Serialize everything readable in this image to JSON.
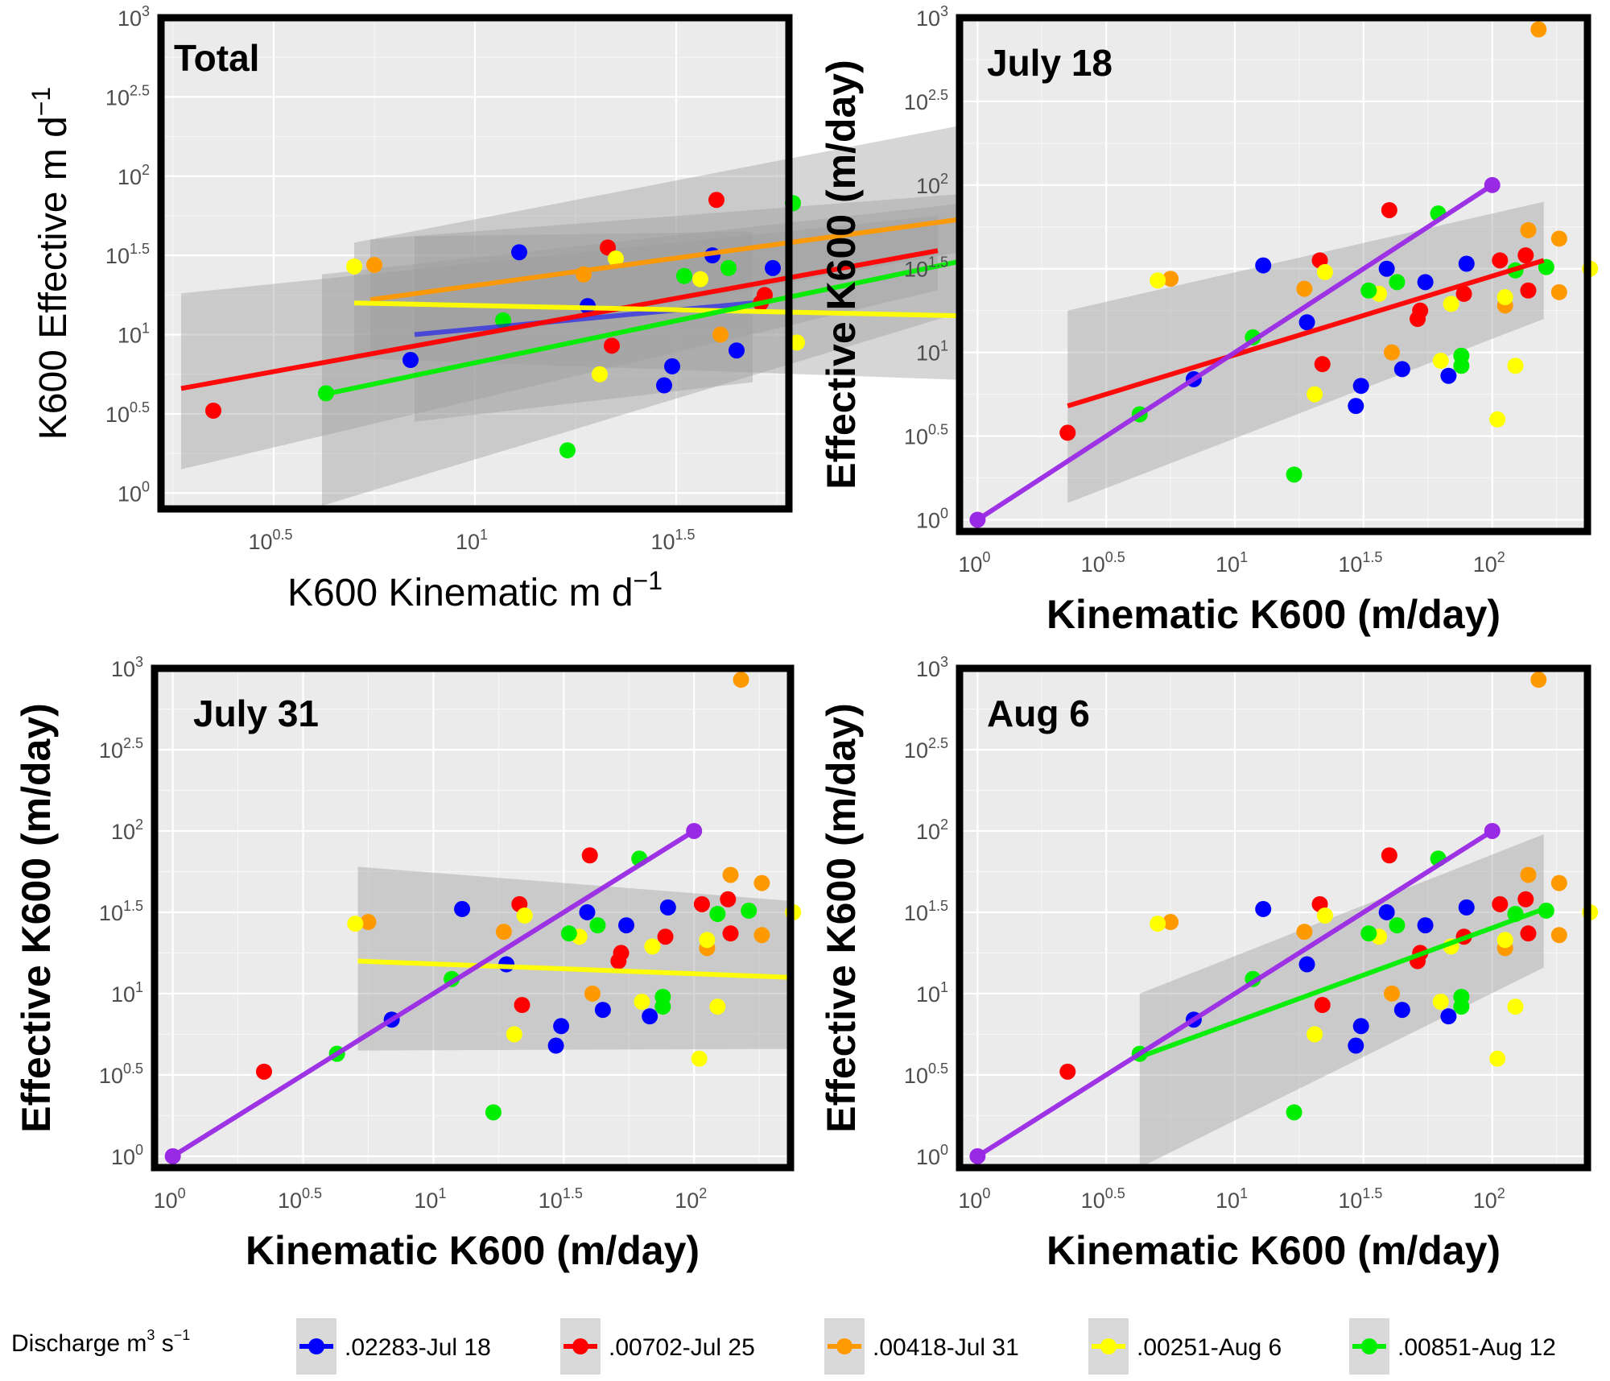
{
  "legend": {
    "title": "Discharge m",
    "title_sup_1": "3",
    "title_mid": " s",
    "title_sup_2": "−1",
    "items": [
      {
        "label": ".02283-Jul 18",
        "color": "#0000ff"
      },
      {
        "label": ".00702-Jul 25",
        "color": "#ff0000"
      },
      {
        "label": ".00418-Jul 31",
        "color": "#ff9900"
      },
      {
        "label": ".00251-Aug 6",
        "color": "#ffff00"
      },
      {
        "label": ".00851-Aug 12",
        "color": "#00ee00"
      }
    ]
  },
  "colors": {
    "blue": "#0000ff",
    "red": "#ff0000",
    "orange": "#ff9900",
    "yellow": "#ffff00",
    "green": "#00ee00",
    "purple": "#9a29e6",
    "ribbon": "#9e9e9e",
    "panel_background": "#ebebeb"
  },
  "chart_data": [
    {
      "type": "scatter",
      "panel": "Total",
      "label": "Total",
      "xlabel": "K600 Kinematic m d",
      "xlabel_sup": "−1",
      "ylabel": "K600 Effective m d",
      "ylabel_sup": "−1",
      "xscale": "log10",
      "yscale": "log10",
      "xlim_log10": [
        0.22,
        1.78
      ],
      "ylim_log10": [
        -0.1,
        3.0
      ],
      "xticks_log10": [
        0.5,
        1.0,
        1.5,
        2.0
      ],
      "yticks_log10": [
        0.0,
        0.5,
        1.0,
        1.5,
        2.0,
        2.5,
        3.0
      ],
      "grid": true,
      "fits": [
        {
          "series": "blue",
          "x_log10": [
            0.85,
            1.69
          ],
          "y_log10": [
            1.0,
            1.2
          ],
          "ribbon_upper": [
            1.62,
            1.65
          ],
          "ribbon_lower": [
            0.45,
            0.7
          ]
        },
        {
          "series": "red",
          "x_log10": [
            0.27,
            2.15
          ],
          "y_log10": [
            0.66,
            1.53
          ],
          "ribbon_upper": [
            1.26,
            1.75
          ],
          "ribbon_lower": [
            0.15,
            1.28
          ]
        },
        {
          "series": "orange",
          "x_log10": [
            0.74,
            2.27
          ],
          "y_log10": [
            1.22,
            1.75
          ],
          "ribbon_upper": [
            1.6,
            1.9
          ],
          "ribbon_lower": [
            0.86,
            1.55
          ]
        },
        {
          "series": "yellow",
          "x_log10": [
            0.7,
            2.37
          ],
          "y_log10": [
            1.2,
            1.11
          ],
          "ribbon_upper": [
            1.58,
            2.4
          ],
          "ribbon_lower": [
            0.85,
            0.7
          ]
        },
        {
          "series": "green",
          "x_log10": [
            0.62,
            2.22
          ],
          "y_log10": [
            0.62,
            1.47
          ],
          "ribbon_upper": [
            1.38,
            1.83
          ],
          "ribbon_lower": [
            -0.08,
            1.15
          ]
        }
      ]
    },
    {
      "type": "scatter",
      "panel": "July 18",
      "label": "July 18",
      "xlabel": "Kinematic K600 (m/day)",
      "ylabel": "Effective K600 (m/day)",
      "xscale": "log10",
      "yscale": "log10",
      "xlim_log10": [
        -0.07,
        2.37
      ],
      "ylim_log10": [
        -0.07,
        3.0
      ],
      "xticks_log10": [
        0.0,
        0.5,
        1.0,
        1.5,
        2.0
      ],
      "yticks_log10": [
        0.0,
        0.5,
        1.0,
        1.5,
        2.0,
        2.5,
        3.0
      ],
      "grid": true,
      "fits": [
        {
          "series": "red",
          "x_log10": [
            0.35,
            2.2
          ],
          "y_log10": [
            0.68,
            1.55
          ],
          "ribbon_upper": [
            1.25,
            1.9
          ],
          "ribbon_lower": [
            0.1,
            1.2
          ]
        },
        {
          "series": "purple",
          "x_log10": [
            0.0,
            2.0
          ],
          "y_log10": [
            0.0,
            2.0
          ],
          "ribbon_upper": null,
          "ribbon_lower": null
        }
      ]
    },
    {
      "type": "scatter",
      "panel": "July 31",
      "label": "July 31",
      "xlabel": "Kinematic K600 (m/day)",
      "ylabel": "Effective K600 (m/day)",
      "xscale": "log10",
      "yscale": "log10",
      "xlim_log10": [
        -0.07,
        2.37
      ],
      "ylim_log10": [
        -0.07,
        3.0
      ],
      "xticks_log10": [
        0.0,
        0.5,
        1.0,
        1.5,
        2.0
      ],
      "yticks_log10": [
        0.0,
        0.5,
        1.0,
        1.5,
        2.0,
        2.5,
        3.0
      ],
      "grid": true,
      "fits": [
        {
          "series": "yellow",
          "x_log10": [
            0.71,
            2.37
          ],
          "y_log10": [
            1.2,
            1.1
          ],
          "ribbon_upper": [
            1.78,
            1.57
          ],
          "ribbon_lower": [
            0.65,
            0.66
          ]
        },
        {
          "series": "purple",
          "x_log10": [
            0.0,
            2.0
          ],
          "y_log10": [
            0.0,
            2.0
          ],
          "ribbon_upper": null,
          "ribbon_lower": null
        }
      ]
    },
    {
      "type": "scatter",
      "panel": "Aug 6",
      "label": "Aug 6",
      "xlabel": "Kinematic K600 (m/day)",
      "ylabel": "Effective K600 (m/day)",
      "xscale": "log10",
      "yscale": "log10",
      "xlim_log10": [
        -0.07,
        2.37
      ],
      "ylim_log10": [
        -0.07,
        3.0
      ],
      "xticks_log10": [
        0.0,
        0.5,
        1.0,
        1.5,
        2.0
      ],
      "yticks_log10": [
        0.0,
        0.5,
        1.0,
        1.5,
        2.0,
        2.5,
        3.0
      ],
      "grid": true,
      "fits": [
        {
          "series": "green",
          "x_log10": [
            0.63,
            2.2
          ],
          "y_log10": [
            0.61,
            1.52
          ],
          "ribbon_upper": [
            1.0,
            1.98
          ],
          "ribbon_lower": [
            -0.07,
            1.16
          ]
        },
        {
          "series": "purple",
          "x_log10": [
            0.0,
            2.0
          ],
          "y_log10": [
            0.0,
            2.0
          ],
          "ribbon_upper": null,
          "ribbon_lower": null
        }
      ]
    }
  ],
  "points": [
    {
      "series": "blue",
      "x_log10": 0.84,
      "y_log10": 0.84
    },
    {
      "series": "blue",
      "x_log10": 1.11,
      "y_log10": 1.52
    },
    {
      "series": "blue",
      "x_log10": 1.28,
      "y_log10": 1.18
    },
    {
      "series": "blue",
      "x_log10": 1.47,
      "y_log10": 0.68
    },
    {
      "series": "blue",
      "x_log10": 1.49,
      "y_log10": 0.8
    },
    {
      "series": "blue",
      "x_log10": 1.59,
      "y_log10": 1.5
    },
    {
      "series": "blue",
      "x_log10": 1.65,
      "y_log10": 0.9
    },
    {
      "series": "blue",
      "x_log10": 1.74,
      "y_log10": 1.42
    },
    {
      "series": "blue",
      "x_log10": 1.83,
      "y_log10": 0.86
    },
    {
      "series": "blue",
      "x_log10": 1.9,
      "y_log10": 1.53
    },
    {
      "series": "red",
      "x_log10": 0.35,
      "y_log10": 0.52
    },
    {
      "series": "red",
      "x_log10": 1.33,
      "y_log10": 1.55
    },
    {
      "series": "red",
      "x_log10": 1.34,
      "y_log10": 0.93
    },
    {
      "series": "red",
      "x_log10": 1.6,
      "y_log10": 1.85
    },
    {
      "series": "red",
      "x_log10": 1.71,
      "y_log10": 1.2
    },
    {
      "series": "red",
      "x_log10": 1.72,
      "y_log10": 1.25
    },
    {
      "series": "red",
      "x_log10": 1.89,
      "y_log10": 1.35
    },
    {
      "series": "red",
      "x_log10": 2.03,
      "y_log10": 1.55
    },
    {
      "series": "red",
      "x_log10": 2.13,
      "y_log10": 1.58
    },
    {
      "series": "red",
      "x_log10": 2.14,
      "y_log10": 1.37
    },
    {
      "series": "orange",
      "x_log10": 0.75,
      "y_log10": 1.44
    },
    {
      "series": "orange",
      "x_log10": 1.27,
      "y_log10": 1.38
    },
    {
      "series": "orange",
      "x_log10": 1.61,
      "y_log10": 1.0
    },
    {
      "series": "orange",
      "x_log10": 2.05,
      "y_log10": 1.28
    },
    {
      "series": "orange",
      "x_log10": 2.14,
      "y_log10": 1.73
    },
    {
      "series": "orange",
      "x_log10": 2.18,
      "y_log10": 2.93
    },
    {
      "series": "orange",
      "x_log10": 2.26,
      "y_log10": 1.36
    },
    {
      "series": "orange",
      "x_log10": 2.26,
      "y_log10": 1.68
    },
    {
      "series": "yellow",
      "x_log10": 0.7,
      "y_log10": 1.43
    },
    {
      "series": "yellow",
      "x_log10": 1.31,
      "y_log10": 0.75
    },
    {
      "series": "yellow",
      "x_log10": 1.35,
      "y_log10": 1.48
    },
    {
      "series": "yellow",
      "x_log10": 1.56,
      "y_log10": 1.35
    },
    {
      "series": "yellow",
      "x_log10": 1.8,
      "y_log10": 0.95
    },
    {
      "series": "yellow",
      "x_log10": 2.02,
      "y_log10": 0.6
    },
    {
      "series": "yellow",
      "x_log10": 2.05,
      "y_log10": 1.33
    },
    {
      "series": "yellow",
      "x_log10": 2.09,
      "y_log10": 0.92
    },
    {
      "series": "yellow",
      "x_log10": 2.38,
      "y_log10": 1.5
    },
    {
      "series": "yellow",
      "x_log10": 1.84,
      "y_log10": 1.29
    },
    {
      "series": "green",
      "x_log10": 0.63,
      "y_log10": 0.63
    },
    {
      "series": "green",
      "x_log10": 1.07,
      "y_log10": 1.09
    },
    {
      "series": "green",
      "x_log10": 1.23,
      "y_log10": 0.27
    },
    {
      "series": "green",
      "x_log10": 1.52,
      "y_log10": 1.37
    },
    {
      "series": "green",
      "x_log10": 1.63,
      "y_log10": 1.42
    },
    {
      "series": "green",
      "x_log10": 1.79,
      "y_log10": 1.83
    },
    {
      "series": "green",
      "x_log10": 1.88,
      "y_log10": 0.92
    },
    {
      "series": "green",
      "x_log10": 1.88,
      "y_log10": 0.98
    },
    {
      "series": "green",
      "x_log10": 2.09,
      "y_log10": 1.49
    },
    {
      "series": "green",
      "x_log10": 2.21,
      "y_log10": 1.51
    }
  ]
}
